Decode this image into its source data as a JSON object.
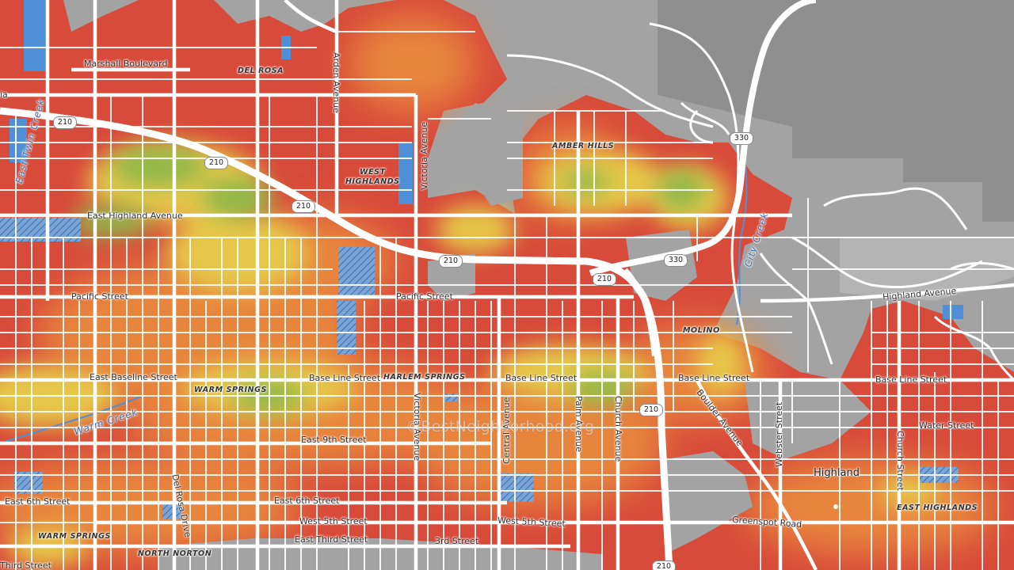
{
  "map": {
    "watermark": "©BestNeighborhood.org",
    "colors": {
      "background": "#9e9e9e",
      "darker_area": "#8e8e8e",
      "red": "#d84a3a",
      "orange": "#e8853c",
      "yellow": "#e6c74a",
      "green": "#8fb84a",
      "water": "#4f8fd8",
      "road": "#ffffff"
    },
    "labels": {
      "marshall_blvd": "Marshall Boulevard",
      "del_rosa_hood": "DEL ROSA",
      "arden_ave": "Arden Avenue",
      "east_twin_creek": "East Twin Creek",
      "victoria_ave_n": "Victoria Avenue",
      "west_highlands": "WEST\nHIGHLANDS",
      "amber_hills": "AMBER HILLS",
      "east_highland_ave": "East Highland Avenue",
      "city_creek": "City Creek",
      "pacific_st_w": "Pacific Street",
      "pacific_st_c": "Pacific Street",
      "highland_ave_e": "Highland Avenue",
      "molino": "MOLINO",
      "east_baseline": "East Baseline Street",
      "warm_springs_1": "WARM SPRINGS",
      "base_line_1": "Base Line Street",
      "harlem_springs": "HARLEM SPRINGS",
      "base_line_2": "Base Line Street",
      "base_line_3": "Base Line Street",
      "base_line_4": "Base Line Street",
      "warm_creek": "Warm Creek",
      "victoria_ave_s": "Victoria Avenue",
      "central_ave": "Central Avenue",
      "palm_ave": "Palm Avenue",
      "church_ave": "Church Avenue",
      "boulder_ave": "Boulder Avenue",
      "webster_st": "Webster Street",
      "water_st": "Water Street",
      "east_9th": "East 9th Street",
      "church_st": "Church Street",
      "highland_city": "Highland",
      "east_6th_w": "East 6th Street",
      "east_6th_c": "East 6th Street",
      "del_rosa_drive": "Del Rosa Drive",
      "east_highlands": "EAST HIGHLANDS",
      "west_5th_1": "West 5th Street",
      "west_5th_2": "West 5th Street",
      "greenspot": "Greenspot Road",
      "warm_springs_2": "WARM SPRINGS",
      "north_norton": "NORTH NORTON",
      "east_third": "East Third Street",
      "third_st": "3rd Street",
      "third_st_w": "Third Street",
      "edge_ia": "ia"
    },
    "shields": {
      "s1": "210",
      "s2": "210",
      "s3": "210",
      "s4": "210",
      "s5": "210",
      "s6": "210",
      "s7": "330",
      "s8": "330",
      "s9": "210"
    }
  }
}
